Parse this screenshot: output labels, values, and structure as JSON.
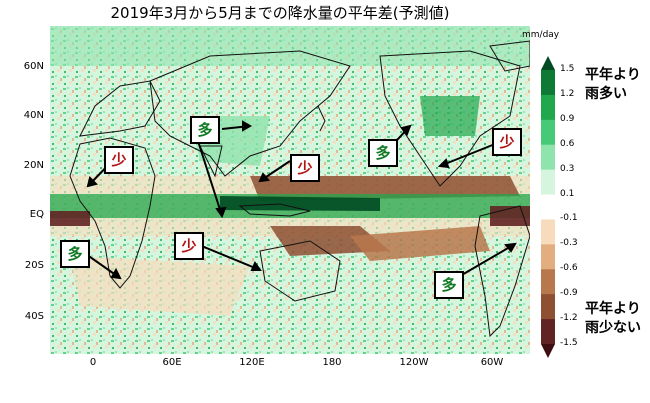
{
  "title": "2019年3月から5月までの降水量の平年差(予測値)",
  "unit": "mm/day",
  "lat_labels": [
    "60N",
    "40N",
    "20N",
    "EQ",
    "20S",
    "40S"
  ],
  "lon_labels": [
    "0",
    "60E",
    "120E",
    "180",
    "120W",
    "60W"
  ],
  "colorbar": {
    "ticks": [
      "1.5",
      "1.2",
      "0.9",
      "0.6",
      "0.3",
      "0.1",
      "-0.1",
      "-0.3",
      "-0.6",
      "-0.9",
      "-1.2",
      "-1.5"
    ],
    "colors": [
      "#004b22",
      "#0f7a35",
      "#21a74c",
      "#48c978",
      "#8fe3ad",
      "#d6f5de",
      "#ffffff",
      "#f6dcbd",
      "#e2ad7f",
      "#b8784d",
      "#8e4f33",
      "#612424",
      "#3e0f12"
    ]
  },
  "scale_top": {
    "line1": "平年より",
    "line2": "雨多い"
  },
  "scale_bottom": {
    "line1": "平年より",
    "line2": "雨少ない"
  },
  "markers": [
    {
      "text": "少",
      "kind": "dry"
    },
    {
      "text": "多",
      "kind": "wet"
    },
    {
      "text": "多",
      "kind": "wet"
    },
    {
      "text": "少",
      "kind": "dry"
    },
    {
      "text": "多",
      "kind": "wet"
    },
    {
      "text": "少",
      "kind": "dry"
    },
    {
      "text": "少",
      "kind": "dry"
    },
    {
      "text": "多",
      "kind": "wet"
    }
  ]
}
